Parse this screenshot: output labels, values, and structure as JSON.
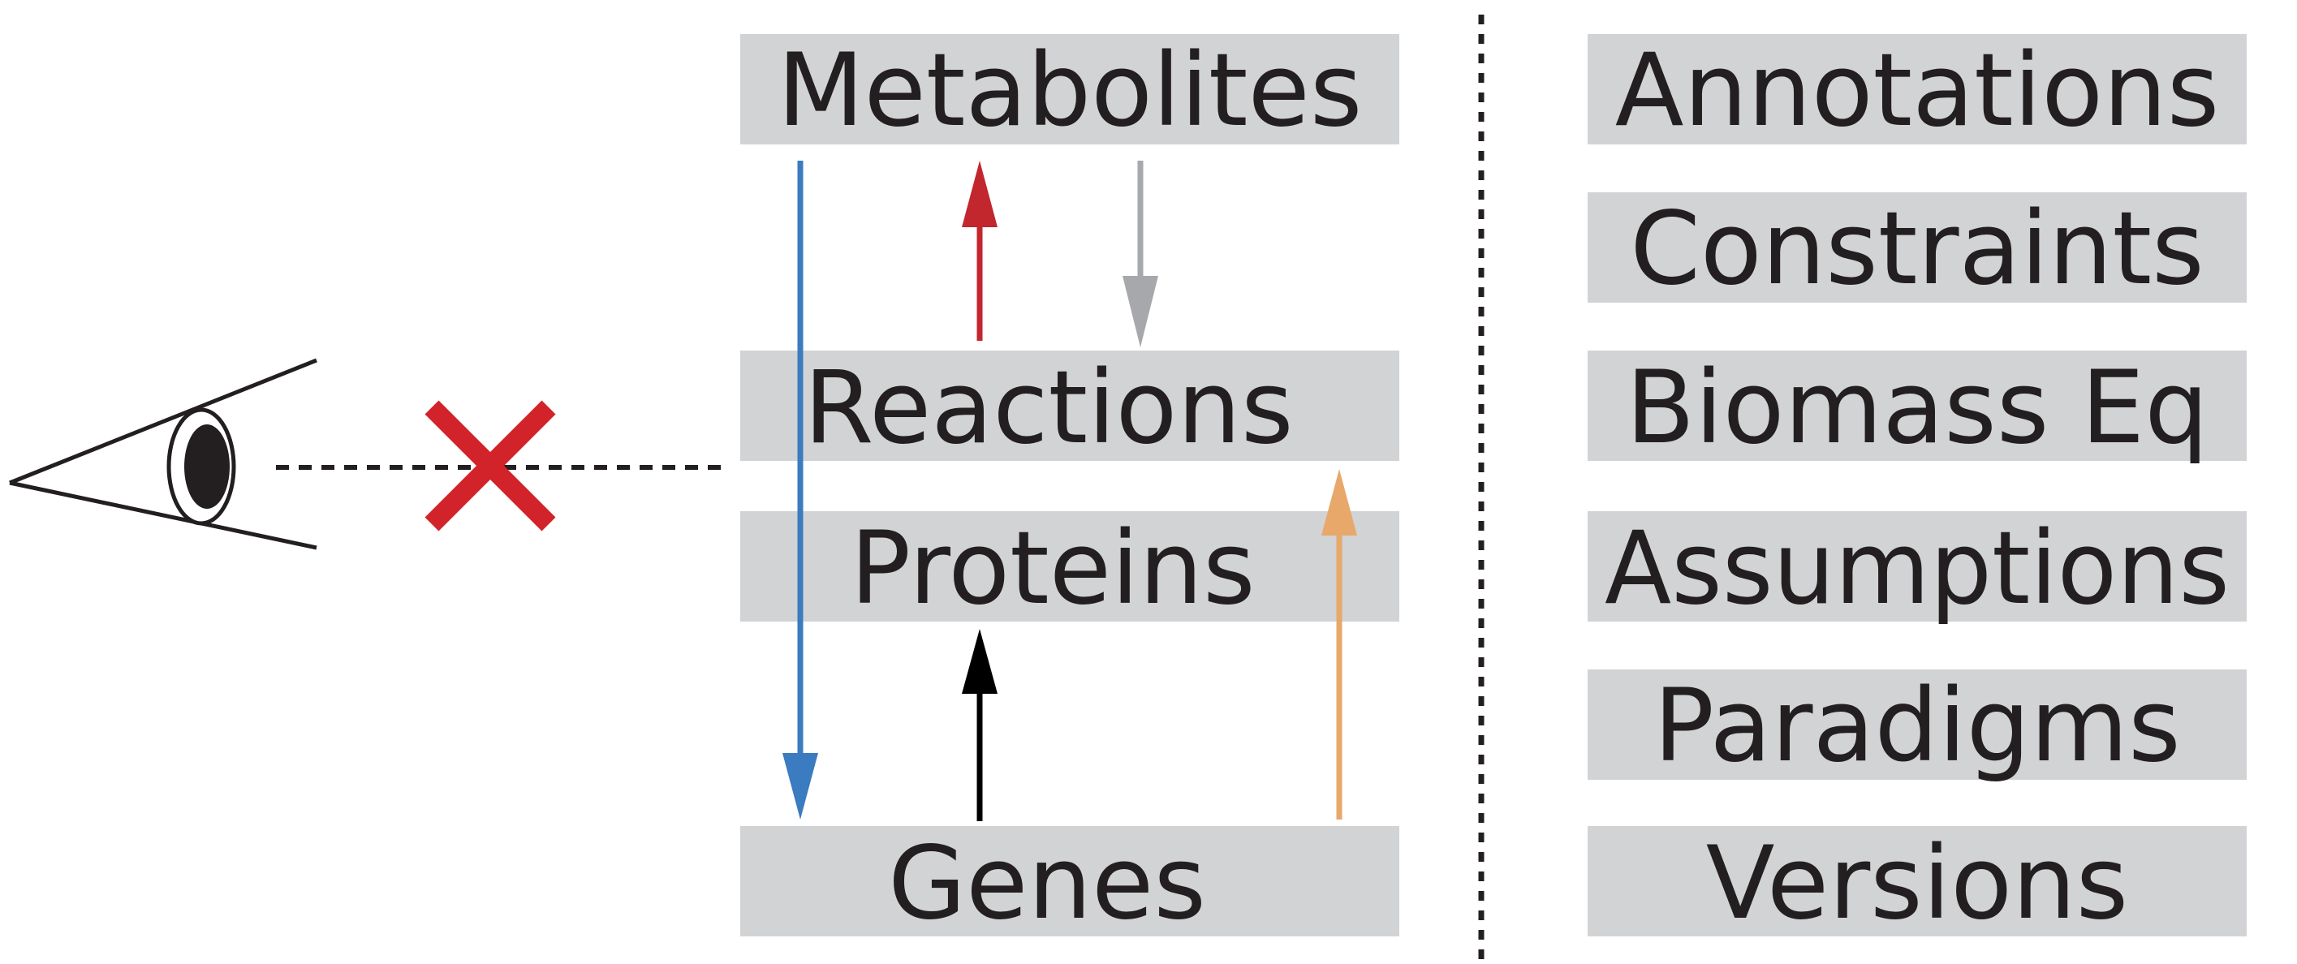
{
  "layers": [
    {
      "id": "metabolites",
      "label": "Metabolites"
    },
    {
      "id": "reactions",
      "label": "Reactions"
    },
    {
      "id": "proteins",
      "label": "Proteins"
    },
    {
      "id": "genes",
      "label": "Genes"
    }
  ],
  "context_items": [
    {
      "label": "Annotations"
    },
    {
      "label": "Constraints"
    },
    {
      "label": "Biomass Eq"
    },
    {
      "label": "Assumptions"
    },
    {
      "label": "Paradigms"
    },
    {
      "label": "Versions"
    }
  ],
  "arrows": [
    {
      "from": "metabolites",
      "to": "genes",
      "color": "#3b7bbf"
    },
    {
      "from": "reactions",
      "to": "metabolites",
      "color": "#c1272d"
    },
    {
      "from": "metabolites",
      "to": "reactions",
      "color": "#a6a8ab"
    },
    {
      "from": "genes",
      "to": "proteins",
      "color": "#000000"
    },
    {
      "from": "genes",
      "to": "reactions",
      "color": "#e8a86a"
    }
  ],
  "colors": {
    "box_fill": "#d1d3d4",
    "text": "#231f20",
    "blocked_mark": "#d2232a"
  },
  "icons": {
    "viewer": "eye-icon",
    "blocked": "cross-icon"
  }
}
